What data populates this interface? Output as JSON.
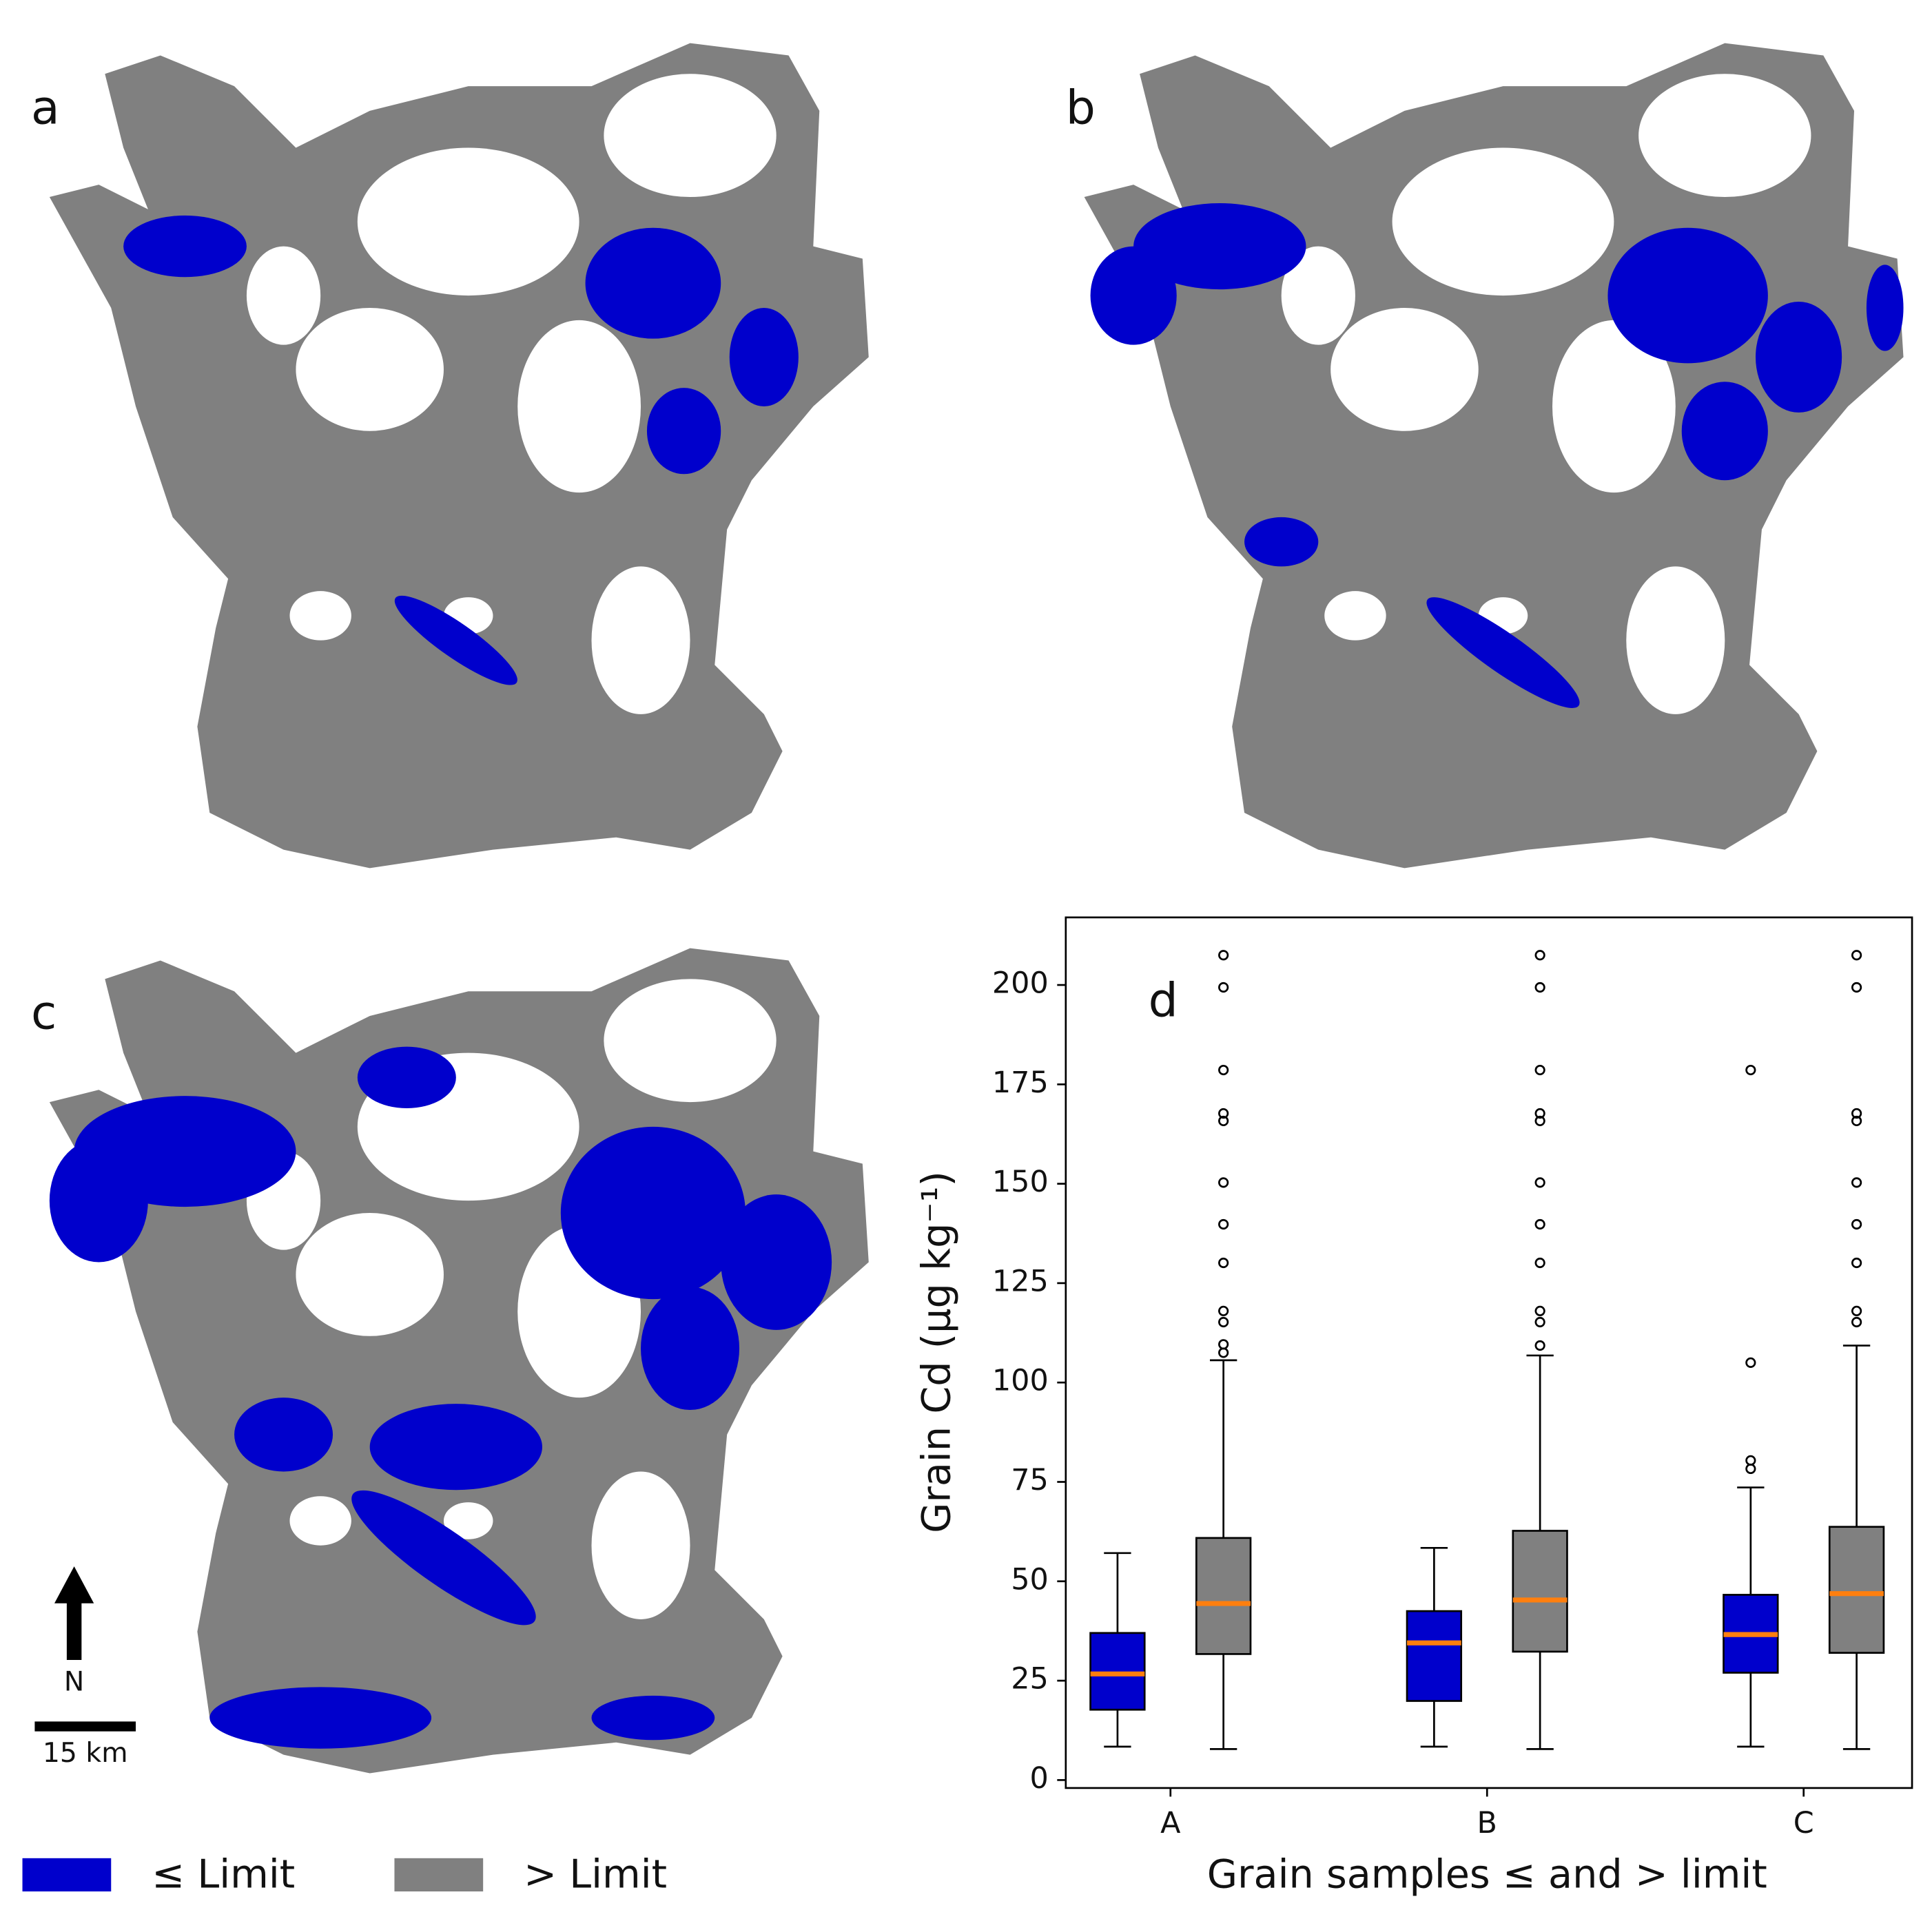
{
  "maps": [
    {
      "label": "a"
    },
    {
      "label": "b"
    },
    {
      "label": "c"
    }
  ],
  "map_key": {
    "north": "N",
    "scale": "15 km"
  },
  "chart_data": {
    "type": "box",
    "panel_label": "d",
    "categories": [
      "A",
      "B",
      "C"
    ],
    "x_label": "Grain samples ≤ and > limit",
    "y_label": "Grain Cd (µg kg⁻¹)",
    "median_color": "#ff7f0e",
    "ylim": [
      -2,
      217
    ],
    "yticks": [
      0,
      25,
      50,
      75,
      100,
      125,
      150,
      175,
      200
    ],
    "series": [
      {
        "name": "≤ Limit",
        "color": "#0000cc",
        "boxes": [
          {
            "whislo": 8.4,
            "q1": 17.7,
            "med": 26.7,
            "q3": 37,
            "whishi": 57.1,
            "fliers": []
          },
          {
            "whislo": 8.4,
            "q1": 19.9,
            "med": 34.5,
            "q3": 42.5,
            "whishi": 58.4,
            "fliers": []
          },
          {
            "whislo": 8.4,
            "q1": 27,
            "med": 36.6,
            "q3": 46.6,
            "whishi": 73.6,
            "fliers": [
              78.3,
              80.4,
              105,
              178.6
            ]
          }
        ]
      },
      {
        "name": "> Limit",
        "color": "#808080",
        "boxes": [
          {
            "whislo": 7.8,
            "q1": 31.7,
            "med": 44.4,
            "q3": 60.9,
            "whishi": 105.6,
            "fliers": [
              107.5,
              109.6,
              115.2,
              118,
              130.1,
              139.8,
              150.3,
              165.8,
              167.7,
              178.6,
              199.4,
              207.5
            ]
          },
          {
            "whislo": 7.8,
            "q1": 32.3,
            "med": 45.3,
            "q3": 62.7,
            "whishi": 106.8,
            "fliers": [
              109.3,
              115.2,
              118,
              130.1,
              139.8,
              150.3,
              165.8,
              167.7,
              178.6,
              199.4,
              207.5
            ]
          },
          {
            "whislo": 7.8,
            "q1": 32,
            "med": 46.9,
            "q3": 63.7,
            "whishi": 109.3,
            "fliers": [
              115.2,
              118,
              130.1,
              139.8,
              150.3,
              165.8,
              167.7,
              199.4,
              207.5
            ]
          }
        ]
      }
    ]
  }
}
